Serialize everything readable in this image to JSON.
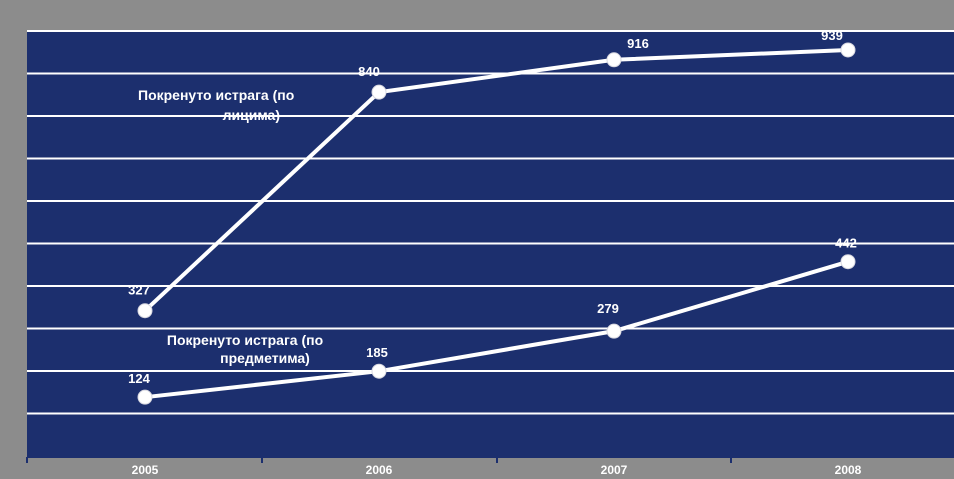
{
  "chart_data": {
    "type": "line",
    "categories": [
      "2005",
      "2006",
      "2007",
      "2008"
    ],
    "series": [
      {
        "name_lines": [
          "Покренуто истрага (по",
          "лицима)"
        ],
        "values": [
          327,
          840,
          916,
          939
        ]
      },
      {
        "name_lines": [
          "Покренуто истрага (по",
          "предметима)"
        ],
        "values": [
          124,
          185,
          279,
          442
        ]
      }
    ],
    "title": "",
    "xlabel": "",
    "ylabel": "",
    "ylim": [
      0,
      1000
    ],
    "grid": true,
    "legend": "none",
    "colors": {
      "plot_background": "#1c2f6e",
      "frame_background": "#8c8c8c",
      "line": "#ffffff",
      "gridline": "#ffffff"
    }
  }
}
